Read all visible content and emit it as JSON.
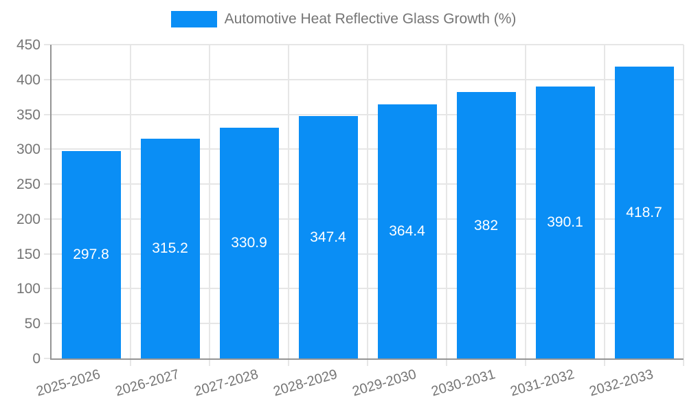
{
  "legend": {
    "label": "Automotive Heat Reflective Glass Growth (%)"
  },
  "colors": {
    "bar": "#0a8ef5",
    "grid": "#e6e6e6",
    "axis": "#949494",
    "tick_text": "#757575",
    "value_text": "#ffffff",
    "background": "#ffffff"
  },
  "chart_data": {
    "type": "bar",
    "title": "Automotive Heat Reflective Glass Growth (%)",
    "categories": [
      "2025-2026",
      "2026-2027",
      "2027-2028",
      "2028-2029",
      "2029-2030",
      "2030-2031",
      "2031-2032",
      "2032-2033"
    ],
    "values": [
      297.8,
      315.2,
      330.9,
      347.4,
      364.4,
      382,
      390.1,
      418.7
    ],
    "value_labels": [
      "297.8",
      "315.2",
      "330.9",
      "347.4",
      "364.4",
      "382",
      "390.1",
      "418.7"
    ],
    "xlabel": "",
    "ylabel": "",
    "ylim": [
      0,
      450
    ],
    "ytick_step": 50,
    "ytick_labels": [
      "0",
      "50",
      "100",
      "150",
      "200",
      "250",
      "300",
      "350",
      "400",
      "450"
    ],
    "grid": true,
    "legend_position": "top",
    "bar_label_position": "center"
  }
}
